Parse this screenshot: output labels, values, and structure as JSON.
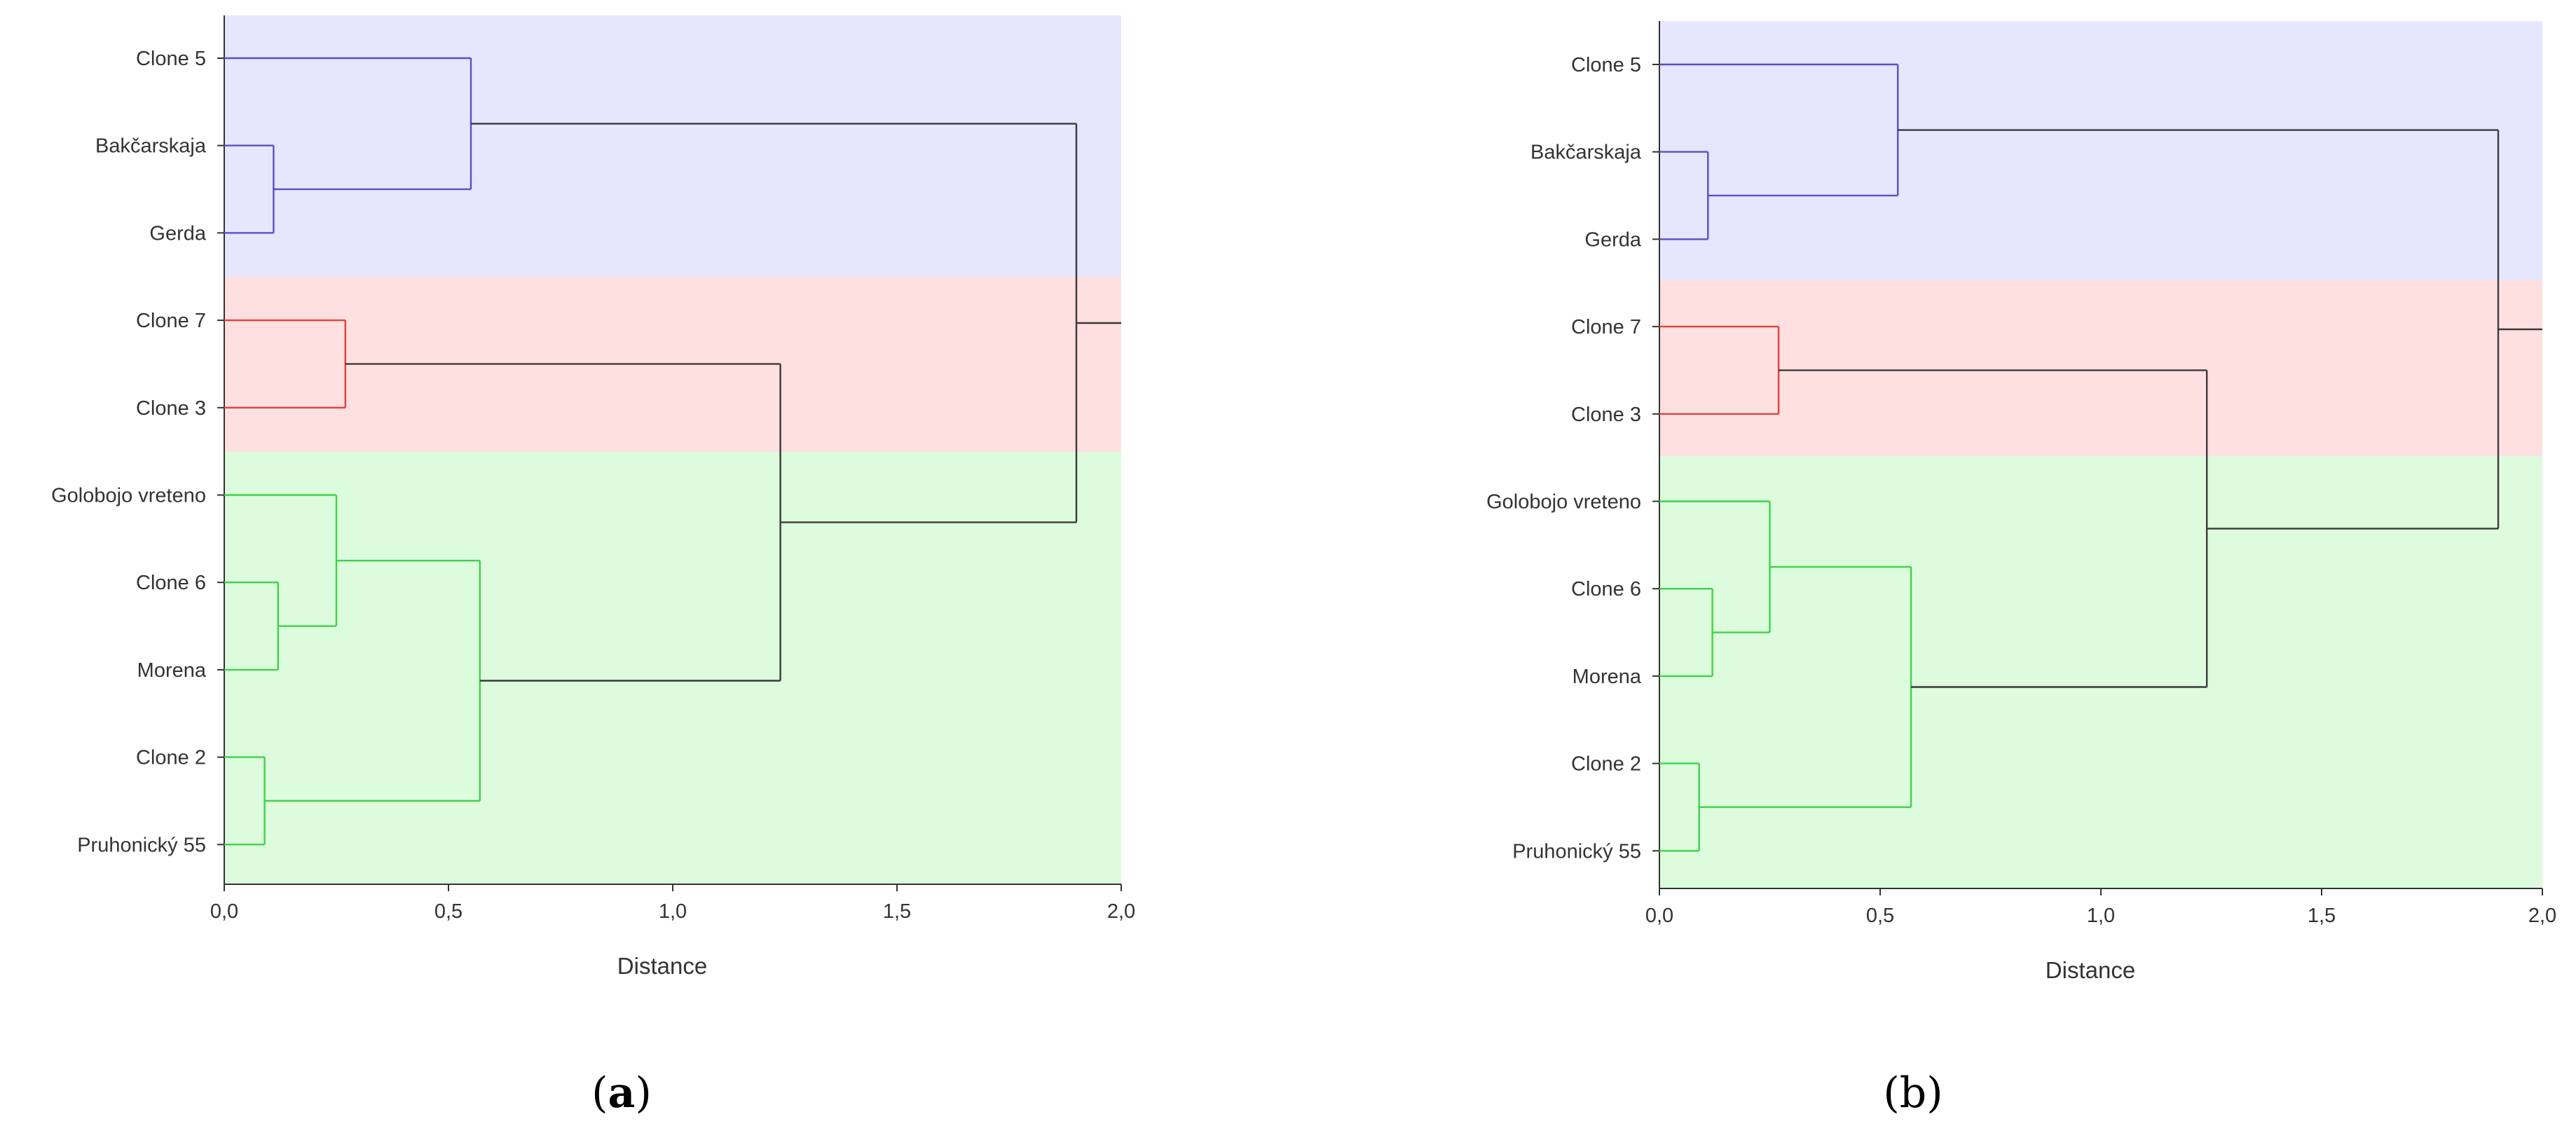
{
  "panels": [
    {
      "caption_letter": "a"
    },
    {
      "caption_letter": "b"
    }
  ],
  "colors": {
    "blue_band": "#e6e6ff",
    "red_band": "#ffe0e0",
    "green_band": "#ddfbdd",
    "blue_line": "#5a4fc4",
    "red_line": "#e0413d",
    "green_line": "#3fd24a",
    "root_line": "#3a3a3a",
    "axis": "#333333",
    "text": "#333333"
  },
  "chart_data": [
    {
      "type": "dendrogram",
      "orientation": "horizontal",
      "xlabel": "Distance",
      "xlim": [
        0,
        2.0
      ],
      "xticks": [
        0,
        0.5,
        1.0,
        1.5,
        2.0
      ],
      "xtick_labels": [
        "0,0",
        "0,5",
        "1,0",
        "1,5",
        "2,0"
      ],
      "leaves": [
        "Clone 5",
        "Bakčarskaja",
        "Gerda",
        "Clone 7",
        "Clone 3",
        "Golobojo vreteno",
        "Clone 6",
        "Morena",
        "Clone 2",
        "Pruhonický 55"
      ],
      "clusters": [
        {
          "name": "blue",
          "from_leaf": 0,
          "to_leaf": 2
        },
        {
          "name": "red",
          "from_leaf": 3,
          "to_leaf": 4
        },
        {
          "name": "green",
          "from_leaf": 5,
          "to_leaf": 9
        }
      ],
      "merges": [
        {
          "id": "m1",
          "a": "Bakčarskaja",
          "b": "Gerda",
          "height": 0.11,
          "cluster": "blue"
        },
        {
          "id": "m2",
          "a": "Clone 5",
          "b": "m1",
          "height": 0.55,
          "cluster": "blue"
        },
        {
          "id": "m3",
          "a": "Clone 7",
          "b": "Clone 3",
          "height": 0.27,
          "cluster": "red"
        },
        {
          "id": "m4",
          "a": "Clone 6",
          "b": "Morena",
          "height": 0.12,
          "cluster": "green"
        },
        {
          "id": "m5",
          "a": "Golobojo vreteno",
          "b": "m4",
          "height": 0.25,
          "cluster": "green"
        },
        {
          "id": "m6",
          "a": "Clone 2",
          "b": "Pruhonický 55",
          "height": 0.09,
          "cluster": "green"
        },
        {
          "id": "m7",
          "a": "m5",
          "b": "m6",
          "height": 0.57,
          "cluster": "green"
        },
        {
          "id": "m8",
          "a": "m3",
          "b": "m7",
          "height": 1.24,
          "cluster": "root"
        },
        {
          "id": "m9",
          "a": "m2",
          "b": "m8",
          "height": 1.9,
          "cluster": "root"
        }
      ],
      "root_tail_to": 2.0
    },
    {
      "type": "dendrogram",
      "orientation": "horizontal",
      "xlabel": "Distance",
      "xlim": [
        0,
        2.0
      ],
      "xticks": [
        0,
        0.5,
        1.0,
        1.5,
        2.0
      ],
      "xtick_labels": [
        "0,0",
        "0,5",
        "1,0",
        "1,5",
        "2,0"
      ],
      "leaves": [
        "Clone 5",
        "Bakčarskaja",
        "Gerda",
        "Clone 7",
        "Clone 3",
        "Golobojo vreteno",
        "Clone 6",
        "Morena",
        "Clone 2",
        "Pruhonický 55"
      ],
      "clusters": [
        {
          "name": "blue",
          "from_leaf": 0,
          "to_leaf": 2
        },
        {
          "name": "red",
          "from_leaf": 3,
          "to_leaf": 4
        },
        {
          "name": "green",
          "from_leaf": 5,
          "to_leaf": 9
        }
      ],
      "merges": [
        {
          "id": "m1",
          "a": "Bakčarskaja",
          "b": "Gerda",
          "height": 0.11,
          "cluster": "blue"
        },
        {
          "id": "m2",
          "a": "Clone 5",
          "b": "m1",
          "height": 0.54,
          "cluster": "blue"
        },
        {
          "id": "m3",
          "a": "Clone 7",
          "b": "Clone 3",
          "height": 0.27,
          "cluster": "red"
        },
        {
          "id": "m4",
          "a": "Clone 6",
          "b": "Morena",
          "height": 0.12,
          "cluster": "green"
        },
        {
          "id": "m5",
          "a": "Golobojo vreteno",
          "b": "m4",
          "height": 0.25,
          "cluster": "green"
        },
        {
          "id": "m6",
          "a": "Clone 2",
          "b": "Pruhonický 55",
          "height": 0.09,
          "cluster": "green"
        },
        {
          "id": "m7",
          "a": "m5",
          "b": "m6",
          "height": 0.57,
          "cluster": "green"
        },
        {
          "id": "m8",
          "a": "m3",
          "b": "m7",
          "height": 1.24,
          "cluster": "root"
        },
        {
          "id": "m9",
          "a": "m2",
          "b": "m8",
          "height": 1.9,
          "cluster": "root"
        }
      ],
      "root_tail_to": 2.0
    }
  ]
}
